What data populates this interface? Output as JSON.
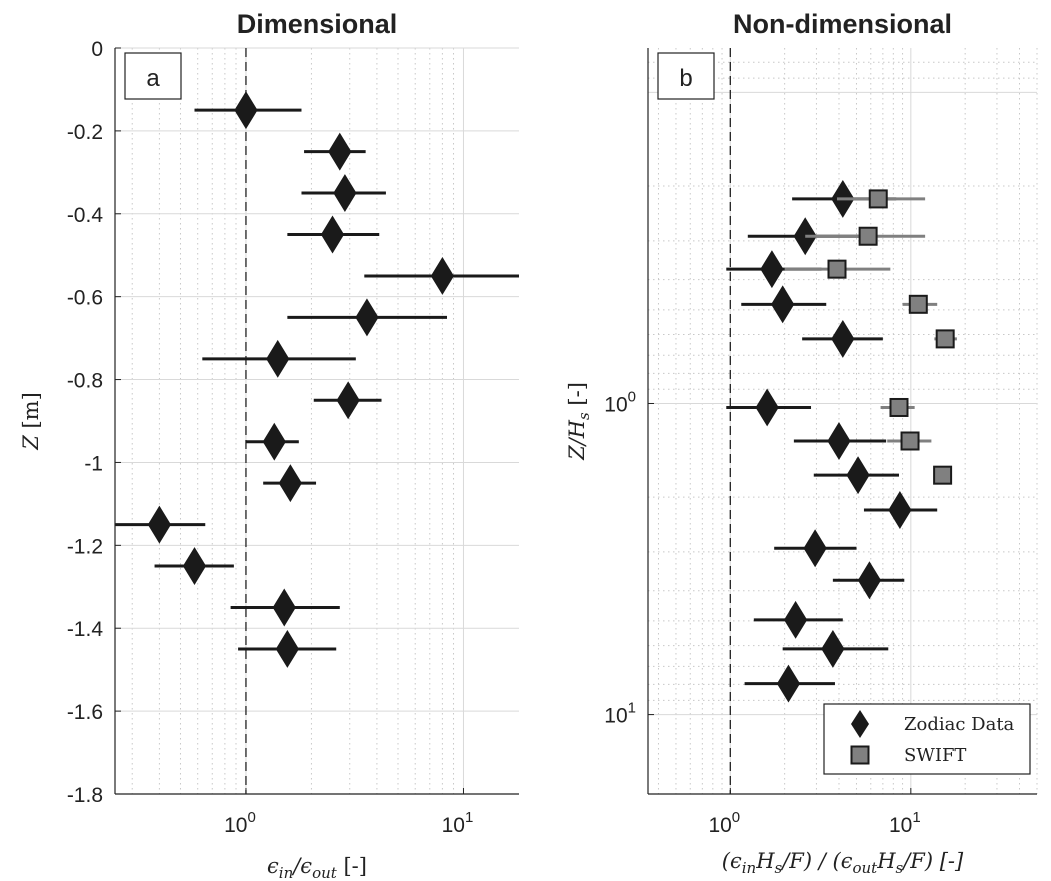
{
  "chart_data": [
    {
      "type": "scatter",
      "title": "Dimensional",
      "panel_label": "a",
      "xlabel": "ϵin/ϵout [-]",
      "ylabel": "Z [m]",
      "xscale": "log",
      "xlim": [
        0.25,
        18
      ],
      "ylim": [
        -1.8,
        0
      ],
      "grid": true,
      "reference_line": {
        "x": 1,
        "style": "dashed"
      },
      "x_ticks": [
        {
          "value": 1,
          "base": "10",
          "exp": "0"
        },
        {
          "value": 10,
          "base": "10",
          "exp": "1"
        }
      ],
      "y_ticks": [
        {
          "value": 0,
          "label": "0"
        },
        {
          "value": -0.2,
          "label": "-0.2"
        },
        {
          "value": -0.4,
          "label": "-0.4"
        },
        {
          "value": -0.6,
          "label": "-0.6"
        },
        {
          "value": -0.8,
          "label": "-0.8"
        },
        {
          "value": -1,
          "label": "-1"
        },
        {
          "value": -1.2,
          "label": "-1.2"
        },
        {
          "value": -1.4,
          "label": "-1.4"
        },
        {
          "value": -1.6,
          "label": "-1.6"
        },
        {
          "value": -1.8,
          "label": "-1.8"
        }
      ],
      "series": [
        {
          "marker": "diamond",
          "color": "#1a1a1a",
          "points": [
            {
              "y": -0.15,
              "x": 1.0,
              "xlo": 0.58,
              "xhi": 1.8
            },
            {
              "y": -0.25,
              "x": 2.7,
              "xlo": 1.85,
              "xhi": 3.55
            },
            {
              "y": -0.35,
              "x": 2.85,
              "xlo": 1.8,
              "xhi": 4.4
            },
            {
              "y": -0.45,
              "x": 2.5,
              "xlo": 1.55,
              "xhi": 4.1
            },
            {
              "y": -0.55,
              "x": 8.0,
              "xlo": 3.5,
              "xhi": 18
            },
            {
              "y": -0.65,
              "x": 3.6,
              "xlo": 1.55,
              "xhi": 8.4
            },
            {
              "y": -0.75,
              "x": 1.4,
              "xlo": 0.63,
              "xhi": 3.2
            },
            {
              "y": -0.85,
              "x": 2.95,
              "xlo": 2.05,
              "xhi": 4.2
            },
            {
              "y": -0.95,
              "x": 1.35,
              "xlo": 1.0,
              "xhi": 1.75
            },
            {
              "y": -1.05,
              "x": 1.6,
              "xlo": 1.2,
              "xhi": 2.1
            },
            {
              "y": -1.15,
              "x": 0.4,
              "xlo": 0.25,
              "xhi": 0.65
            },
            {
              "y": -1.25,
              "x": 0.58,
              "xlo": 0.38,
              "xhi": 0.88
            },
            {
              "y": -1.35,
              "x": 1.5,
              "xlo": 0.85,
              "xhi": 2.7
            },
            {
              "y": -1.45,
              "x": 1.55,
              "xlo": 0.92,
              "xhi": 2.6
            }
          ]
        }
      ]
    },
    {
      "type": "scatter",
      "title": "Non-dimensional",
      "panel_label": "b",
      "xlabel": "(ϵinHs/F)/(ϵoutHs/F) [-]",
      "ylabel": "Z/Hs [-]",
      "xscale": "log",
      "yscale": "log",
      "y_reversed": true,
      "xlim": [
        0.35,
        50
      ],
      "ylim": [
        0.072,
        18
      ],
      "grid": true,
      "reference_line": {
        "x": 1,
        "style": "dashed"
      },
      "x_ticks": [
        {
          "value": 1,
          "base": "10",
          "exp": "0"
        },
        {
          "value": 10,
          "base": "10",
          "exp": "1"
        }
      ],
      "y_ticks": [
        {
          "value": 1,
          "base": "10",
          "exp": "0"
        },
        {
          "value": 10,
          "base": "10",
          "exp": "1"
        }
      ],
      "legend": {
        "placement": "bottom-right",
        "entries": [
          "Zodiac Data",
          "SWIFT"
        ]
      },
      "series": [
        {
          "name": "Zodiac Data",
          "marker": "diamond",
          "color": "#1a1a1a",
          "points": [
            {
              "y": 0.22,
              "x": 4.2,
              "xlo": 2.2,
              "xhi": 8.3
            },
            {
              "y": 0.29,
              "x": 2.6,
              "xlo": 1.25,
              "xhi": 5.3
            },
            {
              "y": 0.37,
              "x": 1.7,
              "xlo": 0.95,
              "xhi": 3.2
            },
            {
              "y": 0.48,
              "x": 1.95,
              "xlo": 1.15,
              "xhi": 3.4
            },
            {
              "y": 0.62,
              "x": 4.2,
              "xlo": 2.5,
              "xhi": 7.0
            },
            {
              "y": 1.03,
              "x": 1.6,
              "xlo": 0.95,
              "xhi": 2.8
            },
            {
              "y": 1.32,
              "x": 4.0,
              "xlo": 2.25,
              "xhi": 7.3
            },
            {
              "y": 1.7,
              "x": 5.1,
              "xlo": 2.9,
              "xhi": 8.6
            },
            {
              "y": 2.2,
              "x": 8.7,
              "xlo": 5.5,
              "xhi": 14
            },
            {
              "y": 2.92,
              "x": 2.95,
              "xlo": 1.75,
              "xhi": 5.0
            },
            {
              "y": 3.7,
              "x": 5.9,
              "xlo": 3.7,
              "xhi": 9.2
            },
            {
              "y": 4.96,
              "x": 2.3,
              "xlo": 1.35,
              "xhi": 4.2
            },
            {
              "y": 6.15,
              "x": 3.7,
              "xlo": 1.95,
              "xhi": 7.5
            },
            {
              "y": 7.95,
              "x": 2.1,
              "xlo": 1.2,
              "xhi": 3.8
            }
          ]
        },
        {
          "name": "SWIFT",
          "marker": "square",
          "color": "#808080",
          "points": [
            {
              "y": 0.22,
              "x": 6.6,
              "xlo": 3.9,
              "xhi": 12
            },
            {
              "y": 0.29,
              "x": 5.8,
              "xlo": 2.6,
              "xhi": 12
            },
            {
              "y": 0.37,
              "x": 3.9,
              "xlo": 2.0,
              "xhi": 7.7
            },
            {
              "y": 0.48,
              "x": 11,
              "xlo": 9.0,
              "xhi": 14
            },
            {
              "y": 0.62,
              "x": 15.5,
              "xlo": 13.5,
              "xhi": 18
            },
            {
              "y": 1.03,
              "x": 8.6,
              "xlo": 6.8,
              "xhi": 10.5
            },
            {
              "y": 1.32,
              "x": 9.9,
              "xlo": 7.4,
              "xhi": 13
            },
            {
              "y": 1.7,
              "x": 15
            }
          ]
        }
      ]
    }
  ]
}
